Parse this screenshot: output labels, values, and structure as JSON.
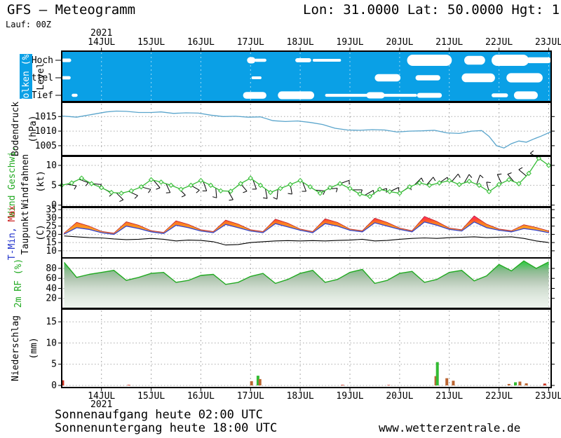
{
  "header": {
    "title": "GFS – Meteogramm",
    "coordinates": "Lon: 31.0000 Lat: 50.0000 Hgt: 1",
    "run": "Lauf: 00Z"
  },
  "footer": {
    "sunrise": "Sonnenaufgang heute 02:00 UTC",
    "sunset": "Sonnenuntergang heute 18:00 UTC",
    "watermark": "www.wetterzentrale.de"
  },
  "chart_data": {
    "type": "meteogram",
    "title": "GFS – Meteogramm",
    "x_axis": {
      "year": "2021",
      "ticks": [
        14,
        15,
        16,
        17,
        18,
        19,
        20,
        21,
        22,
        23
      ],
      "tick_labels": [
        "14JUL",
        "15JUL",
        "16JUL",
        "17JUL",
        "18JUL",
        "19JUL",
        "20JUL",
        "21JUL",
        "22JUL",
        "23JUL"
      ],
      "xlim": [
        13.2,
        23.05
      ]
    },
    "panels": [
      {
        "id": "clouds",
        "type": "heatmap",
        "badge": {
          "text": "Wolken (%)",
          "bg": "#0aa0e6",
          "fg": "#ffffff"
        },
        "ylabel": "Level",
        "row_labels": [
          "Hoch",
          "Mittel",
          "Tief"
        ],
        "bg_color": "#0aa0e6",
        "cloud_color": "#ffffff",
        "rows": {
          "Hoch": [
            [
              13.2,
              13.39,
              0.22
            ],
            [
              16.93,
              17.1,
              0.5
            ],
            [
              17.08,
              17.32,
              0.18
            ],
            [
              17.9,
              18.22,
              0.28
            ],
            [
              18.25,
              18.82,
              0.14
            ],
            [
              20.15,
              21.05,
              1.0
            ],
            [
              21.3,
              21.72,
              0.75
            ],
            [
              21.85,
              22.6,
              1.0
            ],
            [
              22.55,
              23.05,
              0.45
            ]
          ],
          "Mittel": [
            [
              13.2,
              13.38,
              0.2
            ],
            [
              17.02,
              17.22,
              0.14
            ],
            [
              19.5,
              20.02,
              0.6
            ],
            [
              20.32,
              20.82,
              0.4
            ],
            [
              21.25,
              21.92,
              0.75
            ],
            [
              22.15,
              22.88,
              0.8
            ]
          ],
          "Tief": [
            [
              13.4,
              13.52,
              0.18
            ],
            [
              16.85,
              17.32,
              0.55
            ],
            [
              17.55,
              18.28,
              0.65
            ],
            [
              18.5,
              20.35,
              0.16
            ],
            [
              19.33,
              19.7,
              0.5
            ],
            [
              20.35,
              20.85,
              0.35
            ],
            [
              21.85,
              22.18,
              0.25
            ],
            [
              22.3,
              22.78,
              0.65
            ]
          ]
        }
      },
      {
        "id": "pressure",
        "type": "line",
        "ylabels": [
          [
            {
              "t": "Bodendruck",
              "c": "#000000"
            }
          ],
          [
            {
              "t": "(hPa)",
              "c": "#000000"
            }
          ]
        ],
        "yticks": [
          1005,
          1010,
          1015
        ],
        "ylim": [
          1001.6,
          1019.9
        ],
        "line_color": "#5aa5cc",
        "x": [
          13.2,
          13.35,
          13.5,
          13.7,
          13.9,
          14.1,
          14.3,
          14.5,
          14.75,
          15.0,
          15.2,
          15.45,
          15.7,
          15.95,
          16.2,
          16.45,
          16.7,
          16.95,
          17.2,
          17.45,
          17.7,
          17.95,
          18.2,
          18.45,
          18.7,
          18.95,
          19.2,
          19.45,
          19.7,
          19.95,
          20.2,
          20.45,
          20.7,
          20.95,
          21.2,
          21.45,
          21.65,
          21.8,
          21.95,
          22.1,
          22.25,
          22.4,
          22.55,
          22.7,
          22.85,
          23.05
        ],
        "values": [
          1015.2,
          1015.0,
          1014.8,
          1015.4,
          1016.0,
          1016.6,
          1016.9,
          1016.8,
          1016.4,
          1016.4,
          1016.6,
          1016.1,
          1016.3,
          1016.2,
          1015.5,
          1015.0,
          1015.1,
          1014.8,
          1014.9,
          1013.6,
          1013.3,
          1013.5,
          1013.0,
          1012.3,
          1011.0,
          1010.4,
          1010.3,
          1010.5,
          1010.4,
          1009.7,
          1010.0,
          1010.1,
          1010.3,
          1009.4,
          1009.2,
          1010.0,
          1010.2,
          1008.2,
          1005.0,
          1004.2,
          1005.7,
          1006.6,
          1006.2,
          1007.3,
          1008.3,
          1009.8
        ]
      },
      {
        "id": "wind",
        "type": "line",
        "ylabels": [
          [
            {
              "t": "Wind Geschwi.",
              "c": "#22aa22"
            }
          ],
          [
            {
              "t": "Windfahnen",
              "c": "#000000"
            }
          ],
          [
            {
              "t": "(kt)",
              "c": "#000000"
            }
          ]
        ],
        "yticks": [
          0,
          5,
          10
        ],
        "ylim": [
          -0.4,
          12.3
        ],
        "line_color": "#33bb33",
        "x": [
          13.2,
          13.4,
          13.6,
          13.8,
          14.0,
          14.2,
          14.4,
          14.6,
          14.8,
          15.0,
          15.2,
          15.4,
          15.6,
          15.8,
          16.0,
          16.2,
          16.4,
          16.6,
          16.8,
          17.0,
          17.2,
          17.4,
          17.6,
          17.8,
          18.0,
          18.2,
          18.4,
          18.6,
          18.8,
          19.0,
          19.2,
          19.4,
          19.6,
          19.8,
          20.0,
          20.2,
          20.4,
          20.6,
          20.8,
          21.0,
          21.2,
          21.4,
          21.6,
          21.8,
          22.0,
          22.2,
          22.4,
          22.6,
          22.8,
          23.0
        ],
        "values": [
          5.0,
          5.6,
          6.8,
          5.4,
          4.4,
          3.2,
          3.0,
          3.6,
          4.6,
          6.4,
          5.8,
          5.0,
          4.0,
          5.0,
          6.2,
          5.0,
          3.6,
          3.5,
          5.4,
          6.8,
          5.0,
          3.2,
          4.2,
          5.2,
          6.2,
          4.6,
          3.0,
          4.4,
          5.4,
          4.2,
          2.8,
          2.2,
          4.0,
          3.4,
          3.0,
          4.6,
          5.6,
          5.0,
          5.6,
          6.2,
          5.2,
          6.0,
          5.0,
          3.4,
          5.2,
          6.4,
          5.4,
          8.0,
          11.8,
          10.0
        ],
        "barbs": {
          "start": 13.3,
          "interval": 0.25,
          "dirs": [
            100,
            110,
            95,
            120,
            135,
            115,
            105,
            140,
            155,
            135,
            120,
            160,
            175,
            150,
            140,
            160,
            170,
            185,
            170,
            160,
            95,
            85,
            70,
            90,
            60,
            75,
            65,
            55,
            45,
            40,
            55,
            40,
            30,
            20,
            345,
            335,
            320,
            310,
            300
          ]
        }
      },
      {
        "id": "temperature",
        "type": "area",
        "ylabels": [
          [
            {
              "t": "T-Min, ",
              "c": "#2233cc"
            },
            {
              "t": "Max",
              "c": "#cc2222"
            }
          ],
          [
            {
              "t": "Taupunkt",
              "c": "#000000"
            }
          ],
          [
            {
              "t": "(C)",
              "c": "#000000"
            }
          ]
        ],
        "yticks": [
          10,
          15,
          20,
          25,
          30,
          35
        ],
        "ylim": [
          5.7,
          36.3
        ],
        "x": [
          13.25,
          13.5,
          13.75,
          14.0,
          14.25,
          14.5,
          14.75,
          15.0,
          15.25,
          15.5,
          15.75,
          16.0,
          16.25,
          16.5,
          16.75,
          17.0,
          17.25,
          17.5,
          17.75,
          18.0,
          18.25,
          18.5,
          18.75,
          19.0,
          19.25,
          19.5,
          19.75,
          20.0,
          20.25,
          20.5,
          20.75,
          21.0,
          21.25,
          21.5,
          21.75,
          22.0,
          22.25,
          22.5,
          22.75,
          23.0
        ],
        "series": [
          {
            "name": "T-Max",
            "color": "#cc2233",
            "values": [
              20.8,
              27.3,
              25.0,
              21.8,
              20.7,
              27.6,
              25.5,
              22.2,
              21.2,
              28.2,
              26.0,
              22.8,
              21.7,
              28.6,
              26.2,
              22.8,
              21.7,
              29.2,
              26.8,
              23.2,
              21.7,
              29.4,
              27.2,
              23.2,
              22.2,
              29.8,
              27.2,
              23.8,
              22.2,
              30.8,
              27.8,
              23.8,
              22.8,
              31.2,
              26.2,
              23.2,
              22.2,
              25.8,
              24.2,
              22.0
            ]
          },
          {
            "name": "T-Min",
            "color": "#3344cc",
            "values": [
              20.2,
              24.0,
              23.0,
              21.0,
              20.0,
              25.0,
              23.5,
              21.5,
              20.5,
              25.5,
              24.0,
              22.0,
              21.0,
              26.0,
              24.0,
              22.0,
              21.0,
              26.5,
              24.5,
              22.5,
              21.0,
              26.5,
              25.0,
              22.5,
              21.5,
              27.0,
              25.0,
              23.0,
              21.5,
              27.5,
              25.5,
              23.0,
              22.0,
              27.5,
              24.0,
              22.5,
              21.5,
              23.5,
              22.5,
              21.0
            ]
          },
          {
            "name": "Taupunkt",
            "color": "#000000",
            "values": [
              19.0,
              18.5,
              18.0,
              17.8,
              17.2,
              16.8,
              17.0,
              17.5,
              17.0,
              16.0,
              16.5,
              16.3,
              15.5,
              13.5,
              13.8,
              15.0,
              15.5,
              16.0,
              16.2,
              16.0,
              16.2,
              16.0,
              16.3,
              16.5,
              17.0,
              16.0,
              16.3,
              17.0,
              17.5,
              17.8,
              17.5,
              18.0,
              18.2,
              18.5,
              18.0,
              18.3,
              18.5,
              17.5,
              16.0,
              15.0
            ]
          }
        ],
        "band_gradient": [
          [
            "0",
            "#ff00bb"
          ],
          [
            "0.11",
            "#ff00aa"
          ],
          [
            "0.17",
            "#ff2277"
          ],
          [
            "0.24",
            "#ff4433"
          ],
          [
            "0.30",
            "#ff7722"
          ],
          [
            "0.40",
            "#ff9922"
          ],
          [
            "0.53",
            "#ffaa44"
          ],
          [
            "1",
            "#ffbb55"
          ]
        ]
      },
      {
        "id": "humidity",
        "type": "area",
        "ylabels": [
          [
            {
              "t": "2m RF (%)",
              "c": "#22aa22"
            }
          ]
        ],
        "yticks": [
          20,
          40,
          60,
          80
        ],
        "ylim": [
          0,
          101
        ],
        "line_color": "#22aa22",
        "x": [
          13.25,
          13.5,
          13.75,
          14.0,
          14.25,
          14.5,
          14.75,
          15.0,
          15.25,
          15.5,
          15.75,
          16.0,
          16.25,
          16.5,
          16.75,
          17.0,
          17.25,
          17.5,
          17.75,
          18.0,
          18.25,
          18.5,
          18.75,
          19.0,
          19.25,
          19.5,
          19.75,
          20.0,
          20.25,
          20.5,
          20.75,
          21.0,
          21.25,
          21.5,
          21.75,
          22.0,
          22.25,
          22.5,
          22.75,
          23.0
        ],
        "values": [
          92,
          62,
          68,
          72,
          76,
          56,
          62,
          70,
          72,
          52,
          56,
          66,
          68,
          48,
          52,
          64,
          70,
          50,
          58,
          70,
          76,
          52,
          58,
          72,
          78,
          50,
          56,
          70,
          74,
          52,
          58,
          72,
          76,
          55,
          65,
          88,
          75,
          95,
          80,
          93
        ],
        "fill_gradient": [
          [
            "0",
            "#22cc33"
          ],
          [
            "0.12",
            "#44c655"
          ],
          [
            "0.25",
            "#8abb8f"
          ],
          [
            "0.42",
            "#b2c7b2"
          ],
          [
            "0.6",
            "#cfdccf"
          ],
          [
            "0.8",
            "#e2ebe2"
          ],
          [
            "1",
            "#eef4ee"
          ]
        ]
      },
      {
        "id": "precipitation",
        "type": "bar",
        "ylabels": [
          [
            {
              "t": "Niederschlag",
              "c": "#000000"
            }
          ],
          [
            {
              "t": "(mm)",
              "c": "#000000"
            }
          ]
        ],
        "yticks": [
          0,
          5,
          10,
          15
        ],
        "ylim": [
          0,
          18
        ],
        "bars": [
          {
            "x": 13.22,
            "v": 1.2,
            "c": "#cc3322"
          },
          {
            "x": 14.55,
            "v": 0.15,
            "c": "#cc3322"
          },
          {
            "x": 17.02,
            "v": 1.0,
            "c": "#bb6633"
          },
          {
            "x": 17.15,
            "v": 2.3,
            "c": "#33bb33"
          },
          {
            "x": 17.19,
            "v": 1.5,
            "c": "#bb6633"
          },
          {
            "x": 18.85,
            "v": 0.15,
            "c": "#cc3322"
          },
          {
            "x": 19.78,
            "v": 0.12,
            "c": "#cc3322"
          },
          {
            "x": 20.73,
            "v": 2.2,
            "c": "#bb6633"
          },
          {
            "x": 20.76,
            "v": 5.5,
            "c": "#33bb33"
          },
          {
            "x": 20.95,
            "v": 1.7,
            "c": "#bb6633"
          },
          {
            "x": 21.08,
            "v": 1.1,
            "c": "#bb6633"
          },
          {
            "x": 22.2,
            "v": 0.35,
            "c": "#bb6633"
          },
          {
            "x": 22.33,
            "v": 0.75,
            "c": "#33bb33"
          },
          {
            "x": 22.42,
            "v": 0.9,
            "c": "#bb6633"
          },
          {
            "x": 22.55,
            "v": 0.5,
            "c": "#bb6633"
          },
          {
            "x": 22.92,
            "v": 0.45,
            "c": "#cc3322"
          }
        ]
      }
    ]
  }
}
